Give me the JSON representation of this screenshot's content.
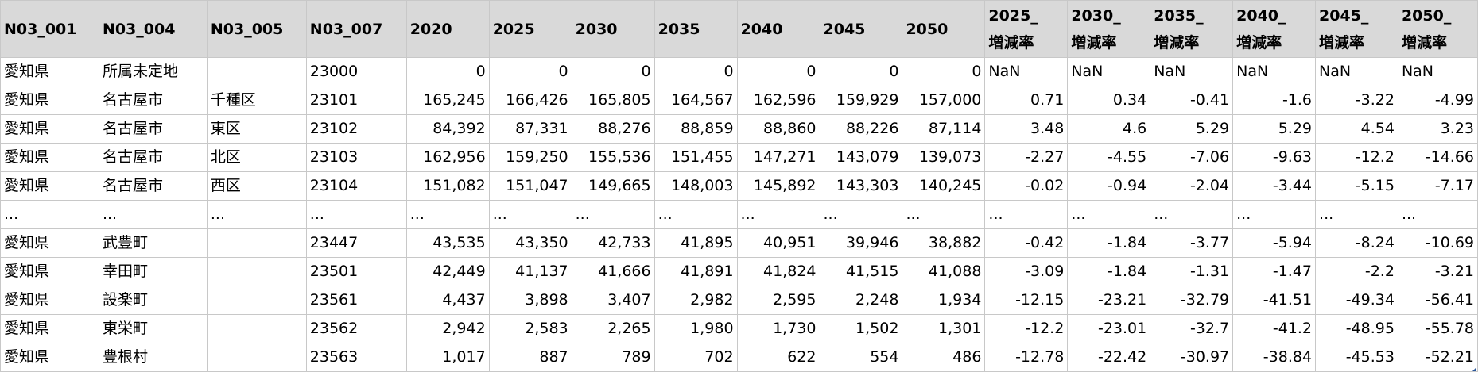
{
  "columns": [
    "N03_001",
    "N03_004",
    "N03_005",
    "N03_007",
    "2020",
    "2025",
    "2030",
    "2035",
    "2040",
    "2045",
    "2050",
    "2025_\n増減率",
    "2030_\n増減率",
    "2035_\n増減率",
    "2040_\n増減率",
    "2045_\n増減率",
    "2050_\n増減率"
  ],
  "rows": [
    [
      "愛知県",
      "所属未定地",
      "",
      "23000",
      "0",
      "0",
      "0",
      "0",
      "0",
      "0",
      "0",
      "NaN",
      "NaN",
      "NaN",
      "NaN",
      "NaN",
      "NaN"
    ],
    [
      "愛知県",
      "名古屋市",
      "千種区",
      "23101",
      "165,245",
      "166,426",
      "165,805",
      "164,567",
      "162,596",
      "159,929",
      "157,000",
      "0.71",
      "0.34",
      "-0.41",
      "-1.6",
      "-3.22",
      "-4.99"
    ],
    [
      "愛知県",
      "名古屋市",
      "東区",
      "23102",
      "84,392",
      "87,331",
      "88,276",
      "88,859",
      "88,860",
      "88,226",
      "87,114",
      "3.48",
      "4.6",
      "5.29",
      "5.29",
      "4.54",
      "3.23"
    ],
    [
      "愛知県",
      "名古屋市",
      "北区",
      "23103",
      "162,956",
      "159,250",
      "155,536",
      "151,455",
      "147,271",
      "143,079",
      "139,073",
      "-2.27",
      "-4.55",
      "-7.06",
      "-9.63",
      "-12.2",
      "-14.66"
    ],
    [
      "愛知県",
      "名古屋市",
      "西区",
      "23104",
      "151,082",
      "151,047",
      "149,665",
      "148,003",
      "145,892",
      "143,303",
      "140,245",
      "-0.02",
      "-0.94",
      "-2.04",
      "-3.44",
      "-5.15",
      "-7.17"
    ],
    [
      "...",
      "...",
      "...",
      "...",
      "...",
      "...",
      "...",
      "...",
      "...",
      "...",
      "...",
      "...",
      "...",
      "...",
      "...",
      "...",
      "..."
    ],
    [
      "愛知県",
      "武豊町",
      "",
      "23447",
      "43,535",
      "43,350",
      "42,733",
      "41,895",
      "40,951",
      "39,946",
      "38,882",
      "-0.42",
      "-1.84",
      "-3.77",
      "-5.94",
      "-8.24",
      "-10.69"
    ],
    [
      "愛知県",
      "幸田町",
      "",
      "23501",
      "42,449",
      "41,137",
      "41,666",
      "41,891",
      "41,824",
      "41,515",
      "41,088",
      "-3.09",
      "-1.84",
      "-1.31",
      "-1.47",
      "-2.2",
      "-3.21"
    ],
    [
      "愛知県",
      "設楽町",
      "",
      "23561",
      "4,437",
      "3,898",
      "3,407",
      "2,982",
      "2,595",
      "2,248",
      "1,934",
      "-12.15",
      "-23.21",
      "-32.79",
      "-41.51",
      "-49.34",
      "-56.41"
    ],
    [
      "愛知県",
      "東栄町",
      "",
      "23562",
      "2,942",
      "2,583",
      "2,265",
      "1,980",
      "1,730",
      "1,502",
      "1,301",
      "-12.2",
      "-23.01",
      "-32.7",
      "-41.2",
      "-48.95",
      "-55.78"
    ],
    [
      "愛知県",
      "豊根村",
      "",
      "23563",
      "1,017",
      "887",
      "789",
      "702",
      "622",
      "554",
      "486",
      "-12.78",
      "-22.42",
      "-30.97",
      "-38.84",
      "-45.53",
      "-52.21"
    ]
  ]
}
